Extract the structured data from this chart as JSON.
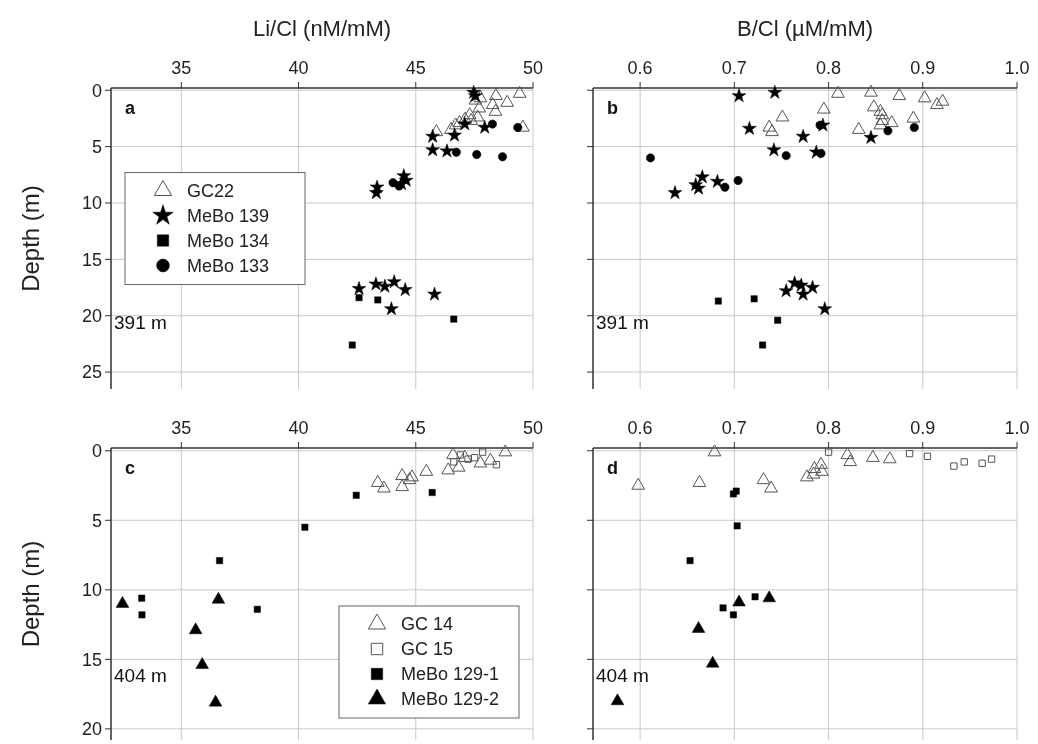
{
  "chart_data": [
    {
      "type": "scatter",
      "xlabel": "Li/Cl (nM/mM)",
      "ylabel": "Depth (m)",
      "xlim": [
        32,
        50
      ],
      "xticks": [
        35,
        40,
        45,
        50
      ],
      "ylim": [
        26.5,
        -0.2
      ],
      "yticks": [
        0,
        5,
        10,
        15,
        20,
        25
      ],
      "grid": true,
      "legend": "left",
      "annotations": [
        "a",
        "391 m"
      ],
      "series": [
        {
          "name": "GC22",
          "marker": "triangle",
          "color": "#555555",
          "x": [
            49.43,
            48.42,
            47.76,
            47.54,
            48.9,
            48.28,
            47.71,
            48.4,
            47.3,
            47.64,
            47.1,
            47.36,
            46.87,
            46.7,
            46.5,
            49.57,
            45.88
          ],
          "values": [
            0.3,
            0.5,
            0.7,
            0.9,
            1.1,
            1.3,
            1.6,
            1.9,
            2.2,
            2.4,
            2.6,
            2.7,
            2.9,
            3.1,
            3.5,
            3.3,
            3.7
          ]
        },
        {
          "name": "MeBo 139",
          "marker": "star",
          "color": "#000000",
          "x": [
            47.47,
            47.54,
            47.09,
            47.94,
            46.65,
            45.72,
            45.72,
            46.33,
            44.49,
            44.59,
            44.39,
            43.35,
            43.32,
            42.58,
            43.3,
            43.68,
            44.08,
            44.55,
            45.8,
            43.96
          ],
          "values": [
            0.2,
            0.5,
            3.0,
            3.3,
            4.0,
            4.1,
            5.3,
            5.4,
            7.6,
            8.0,
            8.3,
            8.6,
            9.1,
            17.6,
            17.2,
            17.4,
            17.0,
            17.7,
            18.1,
            19.4
          ]
        },
        {
          "name": "MeBo 134",
          "marker": "square",
          "color": "#000000",
          "x": [
            42.58,
            43.38,
            46.62,
            42.29
          ],
          "values": [
            18.4,
            18.6,
            20.3,
            22.6
          ]
        },
        {
          "name": "MeBo 133",
          "marker": "circle",
          "color": "#000000",
          "x": [
            48.27,
            49.35,
            46.73,
            47.6,
            48.7,
            44.03,
            44.29
          ],
          "values": [
            3.0,
            3.3,
            5.5,
            5.7,
            5.9,
            8.2,
            8.5
          ]
        }
      ]
    },
    {
      "type": "scatter",
      "xlabel": "B/Cl (µM/mM)",
      "xlim": [
        0.55,
        1.0
      ],
      "xticks": [
        {
          "value": 0.6,
          "label": "0.6"
        },
        {
          "value": 0.7,
          "label": "0.7"
        },
        {
          "value": 0.8,
          "label": "0.8"
        },
        {
          "value": 0.9,
          "label": "0.9"
        },
        {
          "value": 1.0,
          "label": "1.0"
        }
      ],
      "ylim": [
        26.5,
        -0.2
      ],
      "yticks": [
        0,
        5,
        10,
        15,
        20,
        25
      ],
      "tick_labels": "x",
      "grid": true,
      "annotations": [
        "b",
        "391 m"
      ],
      "series": [
        {
          "marker": "triangle",
          "color": "#555555",
          "x": [
            0.81,
            0.845,
            0.875,
            0.902,
            0.915,
            0.921,
            0.795,
            0.848,
            0.855,
            0.857,
            0.857,
            0.867,
            0.855,
            0.89,
            0.751,
            0.737,
            0.74,
            0.832
          ],
          "values": [
            0.3,
            0.2,
            0.5,
            0.7,
            1.3,
            1.0,
            1.7,
            1.5,
            1.9,
            2.2,
            2.7,
            2.9,
            3.1,
            2.5,
            2.4,
            3.3,
            3.7,
            3.5
          ]
        },
        {
          "marker": "star",
          "color": "#000000",
          "x": [
            0.705,
            0.743,
            0.716,
            0.773,
            0.845,
            0.794,
            0.742,
            0.787,
            0.666,
            0.659,
            0.662,
            0.682,
            0.637,
            0.764,
            0.771,
            0.755,
            0.773,
            0.783,
            0.796
          ],
          "values": [
            0.5,
            0.2,
            3.4,
            4.1,
            4.2,
            3.1,
            5.3,
            5.5,
            7.7,
            8.4,
            8.7,
            8.1,
            9.1,
            17.1,
            17.3,
            17.8,
            18.1,
            17.5,
            19.4
          ]
        },
        {
          "marker": "square",
          "color": "#000000",
          "x": [
            0.683,
            0.721,
            0.746,
            0.73
          ],
          "values": [
            18.7,
            18.5,
            20.4,
            22.6
          ]
        },
        {
          "marker": "circle",
          "color": "#000000",
          "x": [
            0.611,
            0.69,
            0.704,
            0.755,
            0.792,
            0.791,
            0.863,
            0.891
          ],
          "values": [
            6.0,
            8.6,
            8.0,
            5.8,
            5.6,
            3.1,
            3.6,
            3.3
          ]
        }
      ]
    },
    {
      "type": "scatter",
      "ylabel": "Depth (m)",
      "xlim": [
        32,
        50
      ],
      "xticks": [
        35,
        40,
        45,
        50
      ],
      "ylim": [
        20.8,
        -0.2
      ],
      "yticks": [
        0,
        5,
        10,
        15,
        20
      ],
      "grid": true,
      "legend": "bottom right",
      "annotations": [
        "c",
        "404 m"
      ],
      "series": [
        {
          "name": "GC 14",
          "marker": "triangle",
          "color": "#555555",
          "x": [
            48.82,
            46.59,
            47.09,
            46.83,
            46.38,
            47.76,
            48.18,
            45.45,
            44.42,
            44.84,
            44.73,
            44.42,
            43.38,
            43.64
          ],
          "values": [
            0.1,
            0.3,
            0.5,
            1.2,
            1.4,
            0.9,
            0.7,
            1.5,
            1.8,
            1.9,
            2.1,
            2.6,
            2.3,
            2.7
          ]
        },
        {
          "name": "GC 15",
          "marker": "square",
          "color": "#555555",
          "x": [
            46.9,
            46.62,
            47.23,
            47.51,
            47.85,
            48.44
          ],
          "values": [
            0.3,
            0.8,
            0.6,
            0.5,
            0.1,
            1.0
          ]
        },
        {
          "name": "MeBo 129-1",
          "marker": "square",
          "color": "#000000",
          "x": [
            42.46,
            45.7,
            40.27,
            36.63,
            33.31,
            33.32,
            38.24
          ],
          "values": [
            3.2,
            3.0,
            5.5,
            7.9,
            10.6,
            11.8,
            11.4
          ]
        },
        {
          "name": "MeBo 129-2",
          "marker": "triangle",
          "color": "#000000",
          "x": [
            32.49,
            36.58,
            35.61,
            35.89,
            36.46
          ],
          "values": [
            11.0,
            10.7,
            12.9,
            15.4,
            18.1
          ]
        }
      ]
    },
    {
      "type": "scatter",
      "xlim": [
        0.55,
        1.0
      ],
      "xticks": [
        {
          "value": 0.6,
          "label": "0.6"
        },
        {
          "value": 0.7,
          "label": "0.7"
        },
        {
          "value": 0.8,
          "label": "0.8"
        },
        {
          "value": 0.9,
          "label": "0.9"
        },
        {
          "value": 1.0,
          "label": "1.0"
        }
      ],
      "ylim": [
        20.8,
        -0.2
      ],
      "yticks": [
        0,
        5,
        10,
        15,
        20
      ],
      "tick_labels": "x",
      "grid": true,
      "annotations": [
        "d",
        "404 m"
      ],
      "series": [
        {
          "marker": "triangle",
          "color": "#555555",
          "x": [
            0.679,
            0.598,
            0.663,
            0.731,
            0.739,
            0.82,
            0.823,
            0.847,
            0.865,
            0.777,
            0.784,
            0.785,
            0.792,
            0.793
          ],
          "values": [
            0.1,
            2.5,
            2.3,
            2.1,
            2.7,
            0.3,
            0.8,
            0.5,
            0.6,
            1.9,
            1.7,
            1.3,
            1.0,
            1.5
          ]
        },
        {
          "marker": "square",
          "color": "#555555",
          "x": [
            0.8,
            0.886,
            0.905,
            0.933,
            0.944,
            0.963,
            0.973
          ],
          "values": [
            0.1,
            0.2,
            0.4,
            1.1,
            0.8,
            0.9,
            0.6
          ]
        },
        {
          "marker": "square",
          "color": "#000000",
          "x": [
            0.699,
            0.702,
            0.703,
            0.653,
            0.688,
            0.699,
            0.722
          ],
          "values": [
            3.1,
            2.9,
            5.4,
            7.9,
            11.3,
            11.8,
            10.5
          ]
        },
        {
          "marker": "triangle",
          "color": "#000000",
          "x": [
            0.705,
            0.737,
            0.662,
            0.677,
            0.576
          ],
          "values": [
            10.9,
            10.6,
            12.8,
            15.3,
            18.0
          ]
        }
      ]
    }
  ]
}
